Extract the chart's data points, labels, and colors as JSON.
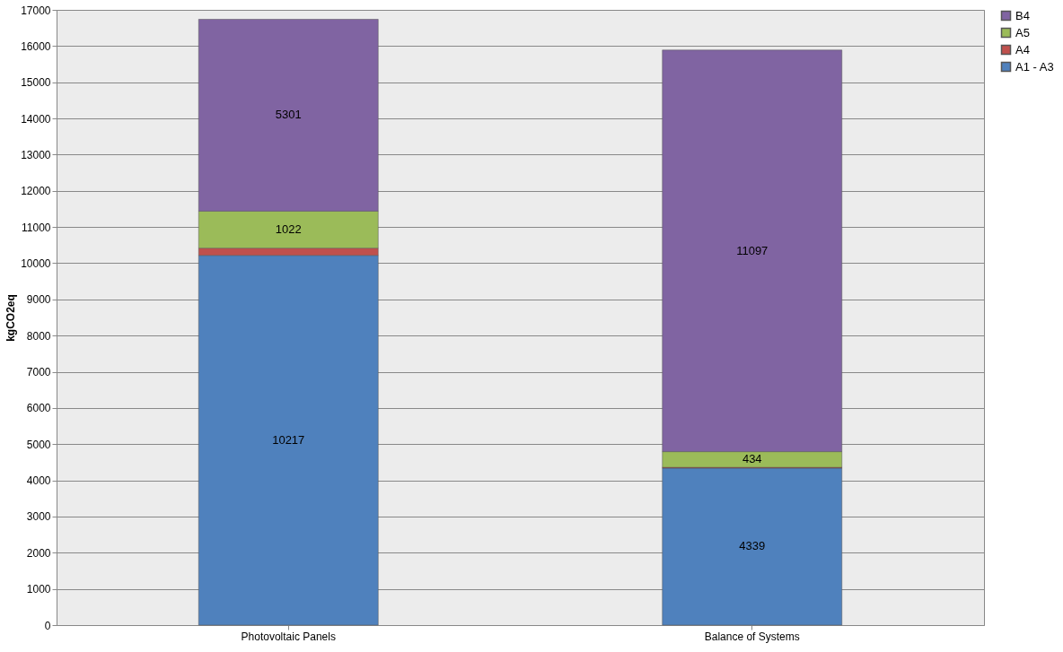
{
  "chart_data": {
    "type": "bar",
    "stacked": true,
    "ylabel": "kgCO2eq",
    "categories": [
      "Photovoltaic Panels",
      "Balance of Systems"
    ],
    "series": [
      {
        "name": "A1 - A3",
        "color": "#4f81bd",
        "values": [
          10217,
          4339
        ],
        "value_labels": [
          "10217",
          "4339"
        ]
      },
      {
        "name": "A4",
        "color": "#c0504d",
        "values": [
          200,
          20
        ],
        "value_labels": [
          null,
          null
        ]
      },
      {
        "name": "A5",
        "color": "#9bbb59",
        "values": [
          1022,
          434
        ],
        "value_labels": [
          "1022",
          "434"
        ]
      },
      {
        "name": "B4",
        "color": "#8064a2",
        "values": [
          5301,
          11097
        ],
        "value_labels": [
          "5301",
          "11097"
        ]
      }
    ],
    "ylim": [
      0,
      17000
    ],
    "yticks": [
      0,
      1000,
      2000,
      3000,
      4000,
      5000,
      6000,
      7000,
      8000,
      9000,
      10000,
      11000,
      12000,
      13000,
      14000,
      15000,
      16000,
      17000
    ],
    "grid": "y",
    "legend": "right"
  }
}
